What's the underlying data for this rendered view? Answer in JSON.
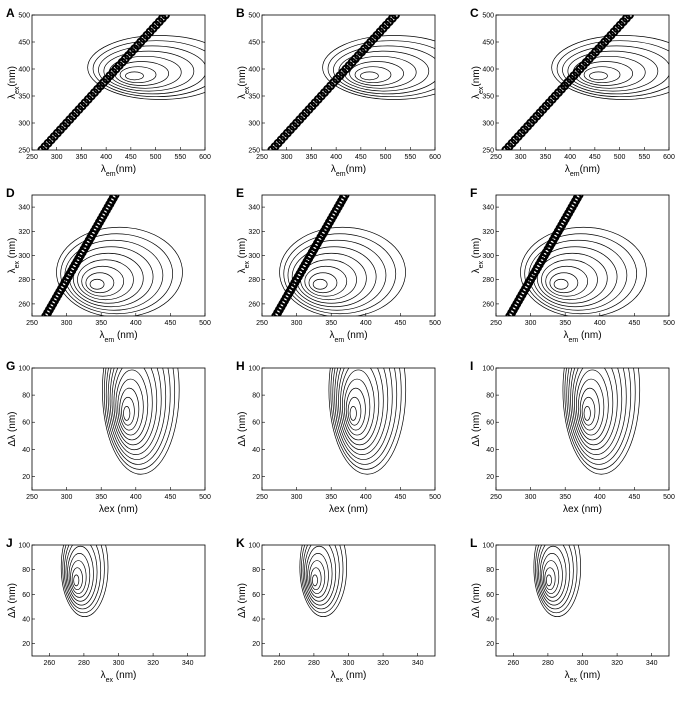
{
  "chart_data": [
    {
      "type": "contour",
      "label": "A",
      "xlabel": [
        "λ",
        "em",
        "(nm)"
      ],
      "ylabel": [
        "λ",
        "ex",
        "(nm)"
      ],
      "xlim": [
        250,
        600
      ],
      "xticks": [
        250,
        300,
        350,
        400,
        450,
        500,
        550,
        600
      ],
      "ylim": [
        250,
        500
      ],
      "yticks": [
        250,
        300,
        350,
        400,
        450,
        500
      ],
      "peak": {
        "x": 450,
        "y": 385
      }
    },
    {
      "type": "contour",
      "label": "B",
      "xlabel": [
        "λ",
        "em",
        "(nm)"
      ],
      "ylabel": [
        "λ",
        "ex",
        "(nm)"
      ],
      "xlim": [
        250,
        600
      ],
      "xticks": [
        250,
        300,
        350,
        400,
        450,
        500,
        550,
        600
      ],
      "ylim": [
        250,
        500
      ],
      "yticks": [
        250,
        300,
        350,
        400,
        450,
        500
      ],
      "peak": {
        "x": 460,
        "y": 385
      }
    },
    {
      "type": "contour",
      "label": "C",
      "xlabel": [
        "λ",
        "em",
        "(nm)"
      ],
      "ylabel": [
        "λ",
        "ex",
        "(nm)"
      ],
      "xlim": [
        250,
        600
      ],
      "xticks": [
        250,
        300,
        350,
        400,
        450,
        500,
        550,
        600
      ],
      "ylim": [
        250,
        500
      ],
      "yticks": [
        250,
        300,
        350,
        400,
        450,
        500
      ],
      "peak": {
        "x": 450,
        "y": 385
      }
    },
    {
      "type": "contour",
      "label": "D",
      "xlabel": [
        "λ",
        "em",
        " (nm)"
      ],
      "ylabel": [
        "λ",
        "ex",
        " (nm)"
      ],
      "xlim": [
        250,
        500
      ],
      "xticks": [
        250,
        300,
        350,
        400,
        450,
        500
      ],
      "ylim": [
        250,
        350
      ],
      "yticks": [
        260,
        280,
        300,
        320,
        340
      ],
      "peak": {
        "x": 340,
        "y": 275
      }
    },
    {
      "type": "contour",
      "label": "E",
      "xlabel": [
        "λ",
        "em",
        " (nm)"
      ],
      "ylabel": [
        "λ",
        "ex",
        " (nm)"
      ],
      "xlim": [
        250,
        500
      ],
      "xticks": [
        250,
        300,
        350,
        400,
        450,
        500
      ],
      "ylim": [
        250,
        350
      ],
      "yticks": [
        260,
        280,
        300,
        320,
        340
      ],
      "peak": {
        "x": 330,
        "y": 275
      }
    },
    {
      "type": "contour",
      "label": "F",
      "xlabel": [
        "λ",
        "em",
        " (nm)"
      ],
      "ylabel": [
        "λ",
        "ex",
        " (nm)"
      ],
      "xlim": [
        250,
        500
      ],
      "xticks": [
        250,
        300,
        350,
        400,
        450,
        500
      ],
      "ylim": [
        250,
        350
      ],
      "yticks": [
        260,
        280,
        300,
        320,
        340
      ],
      "peak": {
        "x": 340,
        "y": 275
      }
    },
    {
      "type": "contour",
      "label": "G",
      "xlabel": [
        "λex (nm)"
      ],
      "ylabel": [
        "Δλ (nm)"
      ],
      "xlim": [
        250,
        500
      ],
      "xticks": [
        250,
        300,
        350,
        400,
        450,
        500
      ],
      "ylim": [
        10,
        100
      ],
      "yticks": [
        20,
        40,
        60,
        80,
        100
      ],
      "peak": {
        "x": 385,
        "y": 65
      }
    },
    {
      "type": "contour",
      "label": "H",
      "xlabel": [
        "λex (nm)"
      ],
      "ylabel": [
        "Δλ (nm)"
      ],
      "xlim": [
        250,
        500
      ],
      "xticks": [
        250,
        300,
        350,
        400,
        450,
        500
      ],
      "ylim": [
        10,
        100
      ],
      "yticks": [
        20,
        40,
        60,
        80,
        100
      ],
      "peak": {
        "x": 380,
        "y": 65
      }
    },
    {
      "type": "contour",
      "label": "I",
      "xlabel": [
        "λex (nm)"
      ],
      "ylabel": [
        "Δλ (nm)"
      ],
      "xlim": [
        250,
        500
      ],
      "xticks": [
        250,
        300,
        350,
        400,
        450,
        500
      ],
      "ylim": [
        10,
        100
      ],
      "yticks": [
        20,
        40,
        60,
        80,
        100
      ],
      "peak": {
        "x": 380,
        "y": 65
      }
    },
    {
      "type": "contour",
      "label": "J",
      "xlabel": [
        "λ",
        "ex",
        " (nm)"
      ],
      "ylabel": [
        "Δλ (nm)"
      ],
      "xlim": [
        250,
        350
      ],
      "xticks": [
        260,
        280,
        300,
        320,
        340
      ],
      "ylim": [
        10,
        100
      ],
      "yticks": [
        20,
        40,
        60,
        80,
        100
      ],
      "peak": {
        "x": 275,
        "y": 70
      }
    },
    {
      "type": "contour",
      "label": "K",
      "xlabel": [
        "λ",
        "ex",
        " (nm)"
      ],
      "ylabel": [
        "Δλ (nm)"
      ],
      "xlim": [
        250,
        350
      ],
      "xticks": [
        260,
        280,
        300,
        320,
        340
      ],
      "ylim": [
        10,
        100
      ],
      "yticks": [
        20,
        40,
        60,
        80,
        100
      ],
      "peak": {
        "x": 280,
        "y": 70
      }
    },
    {
      "type": "contour",
      "label": "L",
      "xlabel": [
        "λ",
        "ex",
        " (nm)"
      ],
      "ylabel": [
        "Δλ (nm)"
      ],
      "xlim": [
        250,
        350
      ],
      "xticks": [
        260,
        280,
        300,
        320,
        340
      ],
      "ylim": [
        10,
        100
      ],
      "yticks": [
        20,
        40,
        60,
        80,
        100
      ],
      "peak": {
        "x": 280,
        "y": 70
      }
    }
  ]
}
